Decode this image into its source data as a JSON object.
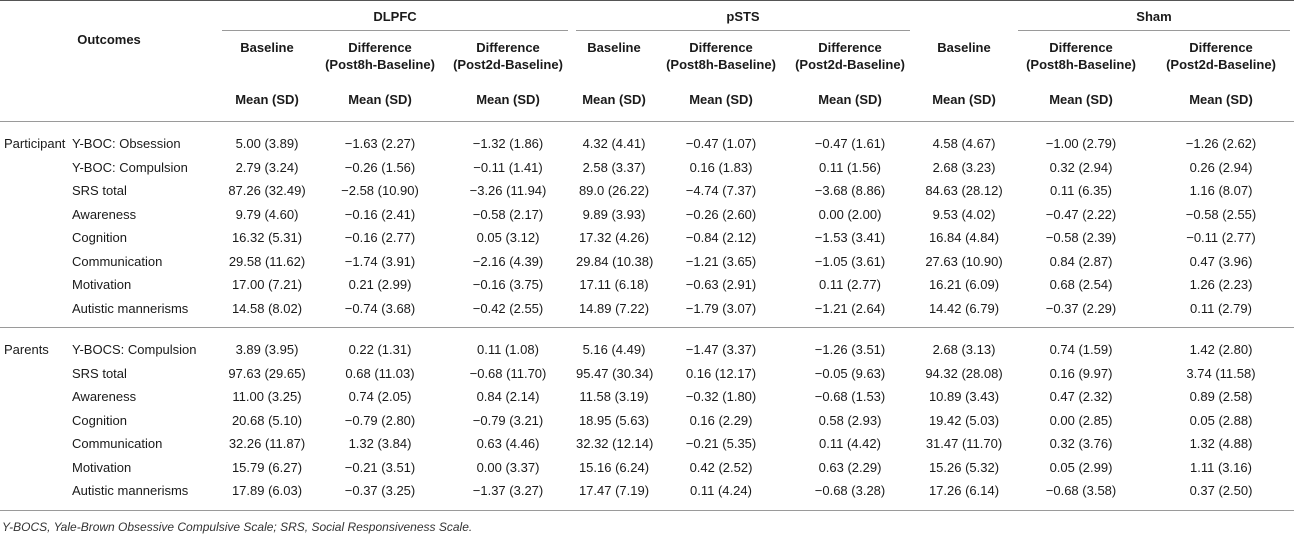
{
  "header": {
    "outcomes_label": "Outcomes",
    "groups": [
      "DLPFC",
      "pSTS",
      "Sham"
    ],
    "columns": [
      {
        "line1": "Baseline",
        "line2": ""
      },
      {
        "line1": "Difference",
        "line2": "(Post8h-Baseline)"
      },
      {
        "line1": "Difference",
        "line2": "(Post2d-Baseline)"
      },
      {
        "line1": "Baseline",
        "line2": ""
      },
      {
        "line1": "Difference",
        "line2": "(Post8h-Baseline)"
      },
      {
        "line1": "Difference",
        "line2": "(Post2d-Baseline)"
      },
      {
        "line1": "Baseline",
        "line2": ""
      },
      {
        "line1": "Difference",
        "line2": "(Post8h-Baseline)"
      },
      {
        "line1": "Difference",
        "line2": "(Post2d-Baseline)"
      }
    ],
    "stat_label": "Mean (SD)"
  },
  "sections": [
    {
      "label": "Participant",
      "rows": [
        {
          "outcome": "Y-BOC: Obsession",
          "values": [
            "5.00 (3.89)",
            "−1.63 (2.27)",
            "−1.32 (1.86)",
            "4.32 (4.41)",
            "−0.47 (1.07)",
            "−0.47 (1.61)",
            "4.58 (4.67)",
            "−1.00 (2.79)",
            "−1.26 (2.62)"
          ]
        },
        {
          "outcome": "Y-BOC: Compulsion",
          "values": [
            "2.79 (3.24)",
            "−0.26 (1.56)",
            "−0.11 (1.41)",
            "2.58 (3.37)",
            "0.16 (1.83)",
            "0.11 (1.56)",
            "2.68 (3.23)",
            "0.32 (2.94)",
            "0.26 (2.94)"
          ]
        },
        {
          "outcome": "SRS total",
          "values": [
            "87.26 (32.49)",
            "−2.58 (10.90)",
            "−3.26 (11.94)",
            "89.0 (26.22)",
            "−4.74 (7.37)",
            "−3.68 (8.86)",
            "84.63 (28.12)",
            "0.11 (6.35)",
            "1.16 (8.07)"
          ]
        },
        {
          "outcome": "Awareness",
          "values": [
            "9.79 (4.60)",
            "−0.16 (2.41)",
            "−0.58 (2.17)",
            "9.89 (3.93)",
            "−0.26 (2.60)",
            "0.00 (2.00)",
            "9.53 (4.02)",
            "−0.47 (2.22)",
            "−0.58 (2.55)"
          ]
        },
        {
          "outcome": "Cognition",
          "values": [
            "16.32 (5.31)",
            "−0.16 (2.77)",
            "0.05 (3.12)",
            "17.32 (4.26)",
            "−0.84 (2.12)",
            "−1.53 (3.41)",
            "16.84 (4.84)",
            "−0.58 (2.39)",
            "−0.11 (2.77)"
          ]
        },
        {
          "outcome": "Communication",
          "values": [
            "29.58 (11.62)",
            "−1.74 (3.91)",
            "−2.16 (4.39)",
            "29.84 (10.38)",
            "−1.21 (3.65)",
            "−1.05 (3.61)",
            "27.63 (10.90)",
            "0.84 (2.87)",
            "0.47 (3.96)"
          ]
        },
        {
          "outcome": "Motivation",
          "values": [
            "17.00 (7.21)",
            "0.21 (2.99)",
            "−0.16 (3.75)",
            "17.11 (6.18)",
            "−0.63 (2.91)",
            "0.11 (2.77)",
            "16.21 (6.09)",
            "0.68 (2.54)",
            "1.26 (2.23)"
          ]
        },
        {
          "outcome": "Autistic mannerisms",
          "values": [
            "14.58 (8.02)",
            "−0.74 (3.68)",
            "−0.42 (2.55)",
            "14.89 (7.22)",
            "−1.79 (3.07)",
            "−1.21 (2.64)",
            "14.42 (6.79)",
            "−0.37 (2.29)",
            "0.11 (2.79)"
          ]
        }
      ]
    },
    {
      "label": "Parents",
      "rows": [
        {
          "outcome": "Y-BOCS: Compulsion",
          "values": [
            "3.89 (3.95)",
            "0.22 (1.31)",
            "0.11 (1.08)",
            "5.16 (4.49)",
            "−1.47 (3.37)",
            "−1.26 (3.51)",
            "2.68 (3.13)",
            "0.74 (1.59)",
            "1.42 (2.80)"
          ]
        },
        {
          "outcome": "SRS total",
          "values": [
            "97.63 (29.65)",
            "0.68 (11.03)",
            "−0.68 (11.70)",
            "95.47 (30.34)",
            "0.16 (12.17)",
            "−0.05 (9.63)",
            "94.32 (28.08)",
            "0.16 (9.97)",
            "3.74 (11.58)"
          ]
        },
        {
          "outcome": "Awareness",
          "values": [
            "11.00 (3.25)",
            "0.74 (2.05)",
            "0.84 (2.14)",
            "11.58 (3.19)",
            "−0.32 (1.80)",
            "−0.68 (1.53)",
            "10.89 (3.43)",
            "0.47 (2.32)",
            "0.89 (2.58)"
          ]
        },
        {
          "outcome": "Cognition",
          "values": [
            "20.68 (5.10)",
            "−0.79 (2.80)",
            "−0.79 (3.21)",
            "18.95 (5.63)",
            "0.16 (2.29)",
            "0.58 (2.93)",
            "19.42 (5.03)",
            "0.00 (2.85)",
            "0.05 (2.88)"
          ]
        },
        {
          "outcome": "Communication",
          "values": [
            "32.26 (11.87)",
            "1.32 (3.84)",
            "0.63 (4.46)",
            "32.32 (12.14)",
            "−0.21 (5.35)",
            "0.11 (4.42)",
            "31.47 (11.70)",
            "0.32 (3.76)",
            "1.32 (4.88)"
          ]
        },
        {
          "outcome": "Motivation",
          "values": [
            "15.79 (6.27)",
            "−0.21 (3.51)",
            "0.00 (3.37)",
            "15.16 (6.24)",
            "0.42 (2.52)",
            "0.63 (2.29)",
            "15.26 (5.32)",
            "0.05 (2.99)",
            "1.11 (3.16)"
          ]
        },
        {
          "outcome": "Autistic mannerisms",
          "values": [
            "17.89 (6.03)",
            "−0.37 (3.25)",
            "−1.37 (3.27)",
            "17.47 (7.19)",
            "0.11 (4.24)",
            "−0.68 (3.28)",
            "17.26 (6.14)",
            "−0.68 (3.58)",
            "0.37 (2.50)"
          ]
        }
      ]
    }
  ],
  "footnote": "Y-BOCS, Yale-Brown Obsessive Compulsive Scale; SRS, Social Responsiveness Scale."
}
